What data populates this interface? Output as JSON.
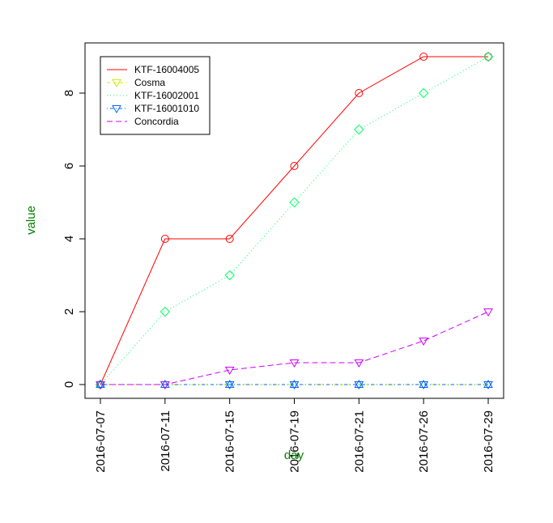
{
  "chart_data": {
    "type": "line",
    "title": "",
    "xlabel": "day",
    "ylabel": "value",
    "axis_title_color": "#008000",
    "categories": [
      "2016-07-07",
      "2016-07-11",
      "2016-07-15",
      "2016-07-19",
      "2016-07-21",
      "2016-07-26",
      "2016-07-29"
    ],
    "ylim": [
      -0.35,
      9.45
    ],
    "yticks": [
      0,
      2,
      4,
      6,
      8
    ],
    "grid": false,
    "legend_position": "top-left",
    "series": [
      {
        "name": "KTF-16004005",
        "color": "#ff0000",
        "dash": "solid",
        "marker": "circle",
        "values": [
          0,
          4,
          4,
          6,
          8,
          9,
          9
        ]
      },
      {
        "name": "Cosma",
        "color": "#ccee00",
        "dash": "dashed",
        "marker": "triangle-down",
        "values": [
          0,
          0,
          0,
          0,
          0,
          0,
          0
        ]
      },
      {
        "name": "KTF-16002001",
        "color": "#00ff66",
        "dash": "dotted",
        "marker": "diamond",
        "values": [
          0,
          2,
          3,
          5,
          7,
          8,
          9
        ]
      },
      {
        "name": "KTF-16001010",
        "color": "#0066ff",
        "dash": "dotdash",
        "marker": "triangle-down",
        "values": [
          0,
          0,
          0,
          0,
          0,
          0,
          0
        ]
      },
      {
        "name": "Concordia",
        "color": "#cc00ff",
        "dash": "longdash",
        "marker": "triangle-down",
        "values": [
          0,
          0,
          0.4,
          0.6,
          0.6,
          1.2,
          2
        ]
      }
    ],
    "extra_markers": [
      {
        "shape": "triangle-up",
        "color": "#0066ff",
        "values": [
          0,
          0,
          0,
          0,
          0,
          0,
          0
        ]
      }
    ]
  }
}
